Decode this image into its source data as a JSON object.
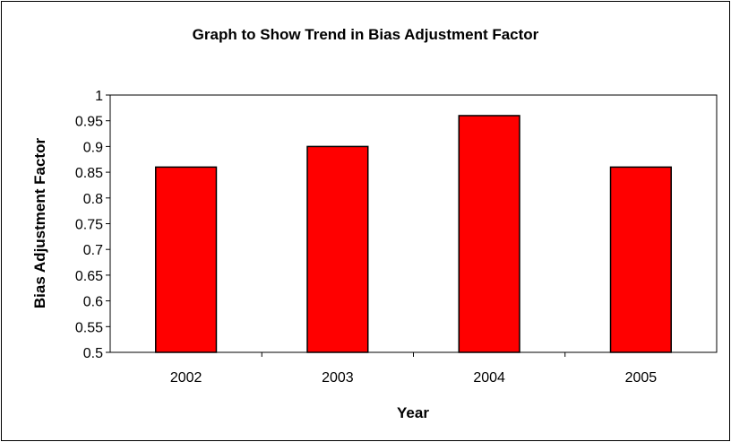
{
  "chart_data": {
    "type": "bar",
    "title": "Graph to Show Trend in Bias Adjustment Factor",
    "xlabel": "Year",
    "ylabel": "Bias Adjustment Factor",
    "categories": [
      "2002",
      "2003",
      "2004",
      "2005"
    ],
    "values": [
      0.86,
      0.9,
      0.96,
      0.86
    ],
    "ylim": [
      0.5,
      1
    ],
    "yticks": [
      "0.5",
      "0.55",
      "0.6",
      "0.65",
      "0.7",
      "0.75",
      "0.8",
      "0.85",
      "0.9",
      "0.95",
      "1"
    ],
    "grid": false,
    "legend": "none",
    "colors": {
      "bar_fill": "#ff0000",
      "bar_stroke": "#000000",
      "axis": "#000000",
      "background": "#ffffff"
    }
  }
}
